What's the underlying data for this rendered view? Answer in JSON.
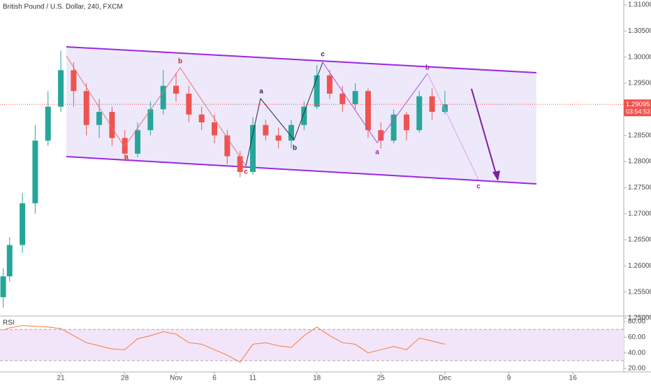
{
  "chart_data": [
    {
      "type": "candlestick",
      "title": "British Pound / U.S. Dollar, 240, FXCM",
      "x": [
        -4.5,
        -4,
        -3,
        -2,
        -1,
        0,
        1,
        2,
        3,
        4,
        5,
        6,
        7,
        8,
        9,
        10,
        11,
        12,
        13,
        14,
        15,
        16,
        17,
        18,
        19,
        20,
        21,
        22,
        23,
        24,
        25,
        26,
        27,
        28,
        29,
        30
      ],
      "open": [
        1.254,
        1.258,
        1.264,
        1.272,
        1.284,
        1.2905,
        1.2975,
        1.2935,
        1.287,
        1.2895,
        1.2845,
        1.2815,
        1.286,
        1.29,
        1.2945,
        1.293,
        1.289,
        1.2875,
        1.285,
        1.281,
        1.278,
        1.287,
        1.285,
        1.284,
        1.287,
        1.2905,
        1.2965,
        1.293,
        1.291,
        1.2935,
        1.286,
        1.284,
        1.289,
        1.286,
        1.2925,
        1.2895
      ],
      "high": [
        1.2595,
        1.2655,
        1.274,
        1.287,
        1.2935,
        1.3012,
        1.299,
        1.295,
        1.292,
        1.2905,
        1.286,
        1.2875,
        1.2915,
        1.2975,
        1.297,
        1.2945,
        1.2905,
        1.289,
        1.286,
        1.282,
        1.2885,
        1.288,
        1.2865,
        1.288,
        1.2915,
        1.2985,
        1.2975,
        1.2945,
        1.295,
        1.294,
        1.2875,
        1.29,
        1.2895,
        1.2935,
        1.294,
        1.2935
      ],
      "low": [
        1.252,
        1.257,
        1.2625,
        1.27,
        1.283,
        1.2895,
        1.2905,
        1.285,
        1.2845,
        1.283,
        1.2805,
        1.2808,
        1.285,
        1.289,
        1.2915,
        1.2875,
        1.286,
        1.2835,
        1.2795,
        1.277,
        1.2775,
        1.284,
        1.2825,
        1.2825,
        1.286,
        1.29,
        1.292,
        1.2895,
        1.29,
        1.2845,
        1.2825,
        1.2835,
        1.284,
        1.2855,
        1.288,
        1.289
      ],
      "close": [
        1.258,
        1.264,
        1.272,
        1.284,
        1.2905,
        1.2975,
        1.2935,
        1.287,
        1.2895,
        1.2845,
        1.2815,
        1.286,
        1.29,
        1.2945,
        1.293,
        1.289,
        1.2875,
        1.285,
        1.281,
        1.278,
        1.287,
        1.285,
        1.284,
        1.287,
        1.2905,
        1.2965,
        1.293,
        1.291,
        1.2935,
        1.286,
        1.284,
        1.289,
        1.286,
        1.2925,
        1.2895,
        1.29095
      ],
      "up_color": "#26a69a",
      "down_color": "#ef5350",
      "xlim": [
        -4.75,
        43.97
      ],
      "xticks": [
        {
          "value": 0,
          "label": "21"
        },
        {
          "value": 5,
          "label": "28"
        },
        {
          "value": 9,
          "label": "Nov"
        },
        {
          "value": 12,
          "label": "6"
        },
        {
          "value": 15,
          "label": "11"
        },
        {
          "value": 20,
          "label": "18"
        },
        {
          "value": 25,
          "label": "25"
        },
        {
          "value": 30,
          "label": "Dec"
        },
        {
          "value": 35,
          "label": "9"
        },
        {
          "value": 40,
          "label": "16"
        }
      ],
      "ylim": [
        1.24933,
        1.31094
      ],
      "yticks": [
        {
          "value": 1.31,
          "label": "1.31000"
        },
        {
          "value": 1.305,
          "label": "1.30500"
        },
        {
          "value": 1.3,
          "label": "1.30000"
        },
        {
          "value": 1.295,
          "label": "1.29500"
        },
        {
          "value": 1.285,
          "label": "1.28500"
        },
        {
          "value": 1.28,
          "label": "1.28000"
        },
        {
          "value": 1.275,
          "label": "1.27500"
        },
        {
          "value": 1.27,
          "label": "1.27000"
        },
        {
          "value": 1.265,
          "label": "1.26500"
        },
        {
          "value": 1.26,
          "label": "1.26000"
        },
        {
          "value": 1.255,
          "label": "1.25500"
        },
        {
          "value": 1.25,
          "label": "1.25000"
        }
      ],
      "last_price": 1.29095,
      "countdown": "03:54:53",
      "annotations": [
        "a",
        "b",
        "c",
        "a",
        "b",
        "c",
        "a",
        "b",
        "c"
      ]
    },
    {
      "type": "line",
      "title": "RSI",
      "color": "#f57c3a",
      "x": [
        -4.5,
        -4,
        -3,
        -2,
        -1,
        0,
        1,
        2,
        3,
        4,
        5,
        6,
        7,
        8,
        9,
        10,
        11,
        12,
        13,
        14,
        15,
        16,
        17,
        18,
        19,
        20,
        21,
        22,
        23,
        24,
        25,
        26,
        27,
        28,
        29,
        30
      ],
      "values": [
        69,
        72,
        75,
        74,
        73,
        71,
        62,
        53,
        49,
        45,
        44,
        58,
        62,
        67,
        64,
        53,
        51,
        44,
        37,
        28,
        51,
        53,
        49,
        47,
        62,
        73,
        62,
        53,
        51,
        40,
        44,
        48,
        44,
        59,
        55,
        51
      ],
      "ylim": [
        15.5,
        87.2
      ],
      "yticks": [
        {
          "value": 80,
          "label": "80.00"
        },
        {
          "value": 60,
          "label": "60.00"
        },
        {
          "value": 40,
          "label": "40.00"
        },
        {
          "value": 20,
          "label": "20.00"
        }
      ],
      "band": [
        30,
        70
      ]
    }
  ]
}
